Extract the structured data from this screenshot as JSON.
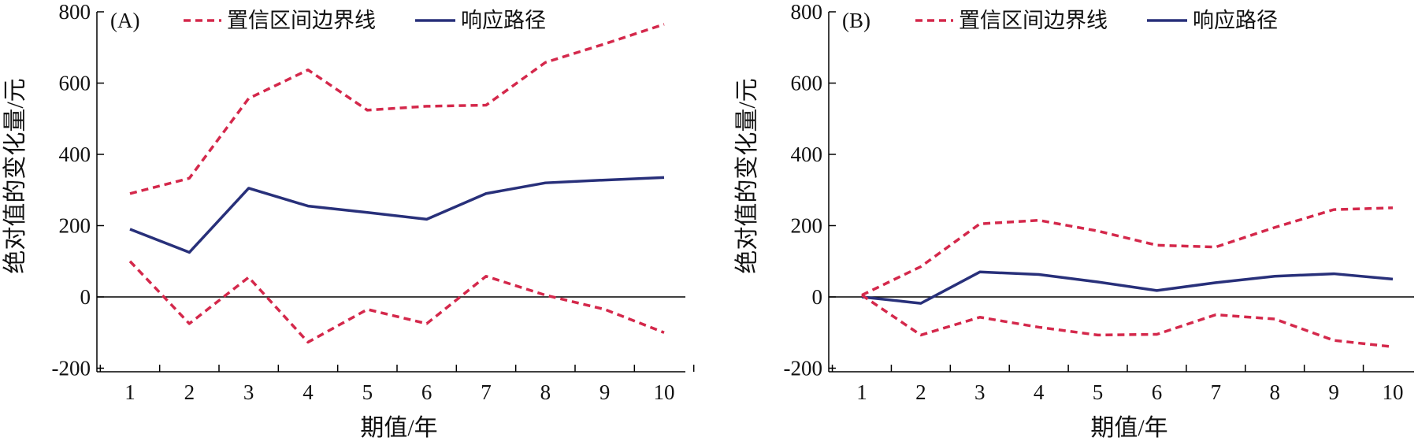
{
  "colors": {
    "ci_bound": "#d4284b",
    "response": "#28307a",
    "axis": "#000000",
    "text": "#111111"
  },
  "chart_data": [
    {
      "type": "line",
      "panel_label": "(A)",
      "xlabel": "期值/年",
      "ylabel": "绝对值的变化量/元",
      "x": [
        1,
        2,
        3,
        4,
        5,
        6,
        7,
        8,
        9,
        10
      ],
      "x_ticks": [
        1,
        2,
        3,
        4,
        5,
        6,
        7,
        8,
        9,
        10
      ],
      "xlim": [
        0.5,
        10.5
      ],
      "y_ticks": [
        -200,
        0,
        200,
        400,
        600,
        800
      ],
      "ylim": [
        -210,
        800
      ],
      "zero_line": true,
      "legend": [
        {
          "label": "置信区间边界线",
          "style": "dashed",
          "color_key": "ci_bound"
        },
        {
          "label": "响应路径",
          "style": "solid",
          "color_key": "response"
        }
      ],
      "series": [
        {
          "name": "置信区间边界线",
          "role": "upper",
          "style": "dashed",
          "values": [
            290,
            333,
            557,
            637,
            524,
            535,
            538,
            658,
            710,
            765
          ]
        },
        {
          "name": "响应路径",
          "role": "response",
          "style": "solid",
          "values": [
            190,
            125,
            305,
            255,
            237,
            218,
            290,
            320,
            328,
            335
          ]
        },
        {
          "name": "置信区间边界线",
          "role": "lower",
          "style": "dashed",
          "values": [
            100,
            -75,
            55,
            -127,
            -35,
            -75,
            58,
            5,
            -35,
            -100
          ]
        }
      ]
    },
    {
      "type": "line",
      "panel_label": "(B)",
      "xlabel": "期值/年",
      "ylabel": "绝对值的变化量/元",
      "x": [
        1,
        2,
        3,
        4,
        5,
        6,
        7,
        8,
        9,
        10
      ],
      "x_ticks": [
        1,
        2,
        3,
        4,
        5,
        6,
        7,
        8,
        9,
        10
      ],
      "xlim": [
        0.5,
        10.5
      ],
      "y_ticks": [
        -200,
        0,
        200,
        400,
        600,
        800
      ],
      "ylim": [
        -210,
        800
      ],
      "zero_line": true,
      "legend": [
        {
          "label": "置信区间边界线",
          "style": "dashed",
          "color_key": "ci_bound"
        },
        {
          "label": "响应路径",
          "style": "solid",
          "color_key": "response"
        }
      ],
      "series": [
        {
          "name": "置信区间边界线",
          "role": "upper",
          "style": "dashed",
          "values": [
            5,
            85,
            205,
            215,
            185,
            145,
            140,
            195,
            245,
            250
          ]
        },
        {
          "name": "响应路径",
          "role": "response",
          "style": "solid",
          "values": [
            0,
            -18,
            70,
            63,
            42,
            18,
            40,
            58,
            65,
            50
          ]
        },
        {
          "name": "置信区间边界线",
          "role": "lower",
          "style": "dashed",
          "values": [
            5,
            -107,
            -57,
            -85,
            -107,
            -105,
            -50,
            -62,
            -122,
            -140
          ]
        }
      ]
    }
  ]
}
